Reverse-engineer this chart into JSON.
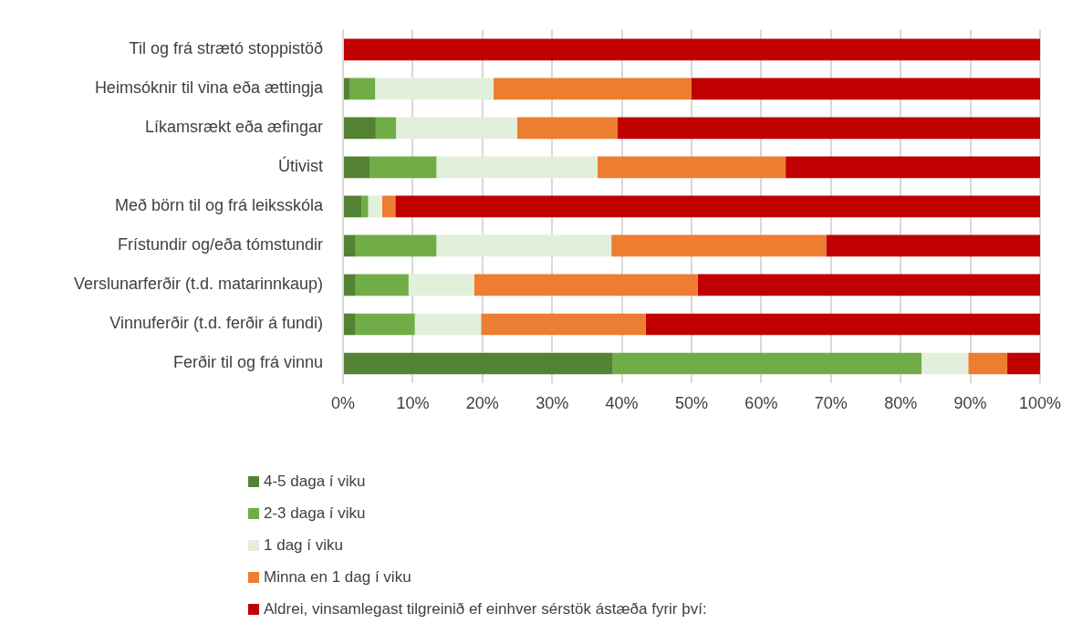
{
  "chart_data": {
    "type": "bar",
    "orientation": "horizontal",
    "stacked": true,
    "categories": [
      "Til og frá strætó stoppistöð",
      "Heimsóknir til vina eða ættingja",
      "Líkamsrækt eða æfingar",
      "Útivist",
      "Með börn til og frá leiksskóla",
      "Frístundir og/eða tómstundir",
      "Verslunarferðir (t.d. matarinnkaup)",
      "Vinnuferðir (t.d. ferðir á fundi)",
      "Ferðir til og frá vinnu"
    ],
    "series": [
      {
        "name": "4-5 daga í viku",
        "color": "#548235",
        "values": [
          0,
          1,
          4.7,
          3.8,
          2.7,
          1.8,
          1.8,
          1.8,
          38.7
        ]
      },
      {
        "name": "2-3 daga í viku",
        "color": "#70ad47",
        "values": [
          0,
          3.6,
          2.9,
          9.6,
          0.9,
          11.6,
          7.6,
          8.5,
          44.3
        ]
      },
      {
        "name": "1 dag í viku",
        "color": "#e2efda",
        "values": [
          0,
          17,
          17.4,
          23.1,
          2,
          25.1,
          9.4,
          9.5,
          6.7
        ]
      },
      {
        "name": "Minna en 1 dag í viku",
        "color": "#ed7d31",
        "values": [
          0,
          28.4,
          14.4,
          27,
          1.9,
          30.8,
          32.1,
          23.6,
          5.6
        ]
      },
      {
        "name": "Aldrei, vinsamlegast tilgreinið ef einhver sérstök ástæða fyrir því:",
        "color": "#c00000",
        "values": [
          100,
          50,
          60.6,
          36.5,
          92.5,
          30.7,
          49.1,
          56.6,
          4.7
        ]
      }
    ],
    "xlim": [
      0,
      100
    ],
    "xticks": [
      {
        "value": 0,
        "label": "0%"
      },
      {
        "value": 10,
        "label": "10%"
      },
      {
        "value": 20,
        "label": "20%"
      },
      {
        "value": 30,
        "label": "30%"
      },
      {
        "value": 40,
        "label": "40%"
      },
      {
        "value": 50,
        "label": "50%"
      },
      {
        "value": 60,
        "label": "60%"
      },
      {
        "value": 70,
        "label": "70%"
      },
      {
        "value": 80,
        "label": "80%"
      },
      {
        "value": 90,
        "label": "90%"
      },
      {
        "value": 100,
        "label": "100%"
      }
    ],
    "grid": "x",
    "legend": "bottom"
  }
}
